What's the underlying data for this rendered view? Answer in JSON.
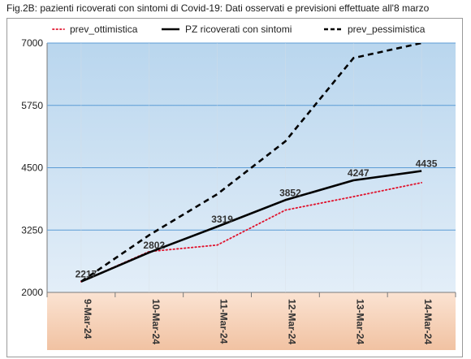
{
  "title": "Fig.2B: pazienti ricoverati con sintomi di Covid-19: Dati osservati e previsioni effettuate all'8 marzo",
  "chart_data": {
    "type": "line",
    "categories": [
      "9-Mar-24",
      "10-Mar-24",
      "11-Mar-24",
      "12-Mar-24",
      "13-Mar-24",
      "14-Mar-24"
    ],
    "ylim": [
      2000,
      7000
    ],
    "yticks": [
      "7000",
      "5750",
      "4500",
      "3250",
      "2000"
    ],
    "grid": true,
    "legend_position": "top",
    "series": [
      {
        "name": "prev_ottimistica",
        "values": [
          2217,
          2820,
          2950,
          3650,
          3920,
          4200
        ],
        "color": "#e0102a",
        "style": "dotted"
      },
      {
        "name": "PZ ricoverati con sintomi",
        "values": [
          2217,
          2802,
          3319,
          3852,
          4247,
          4435
        ],
        "color": "#000000",
        "style": "solid",
        "data_labels": [
          "2217",
          "2802",
          "3319",
          "3852",
          "4247",
          "4435"
        ]
      },
      {
        "name": "prev_pessimistica",
        "values": [
          2217,
          3150,
          3970,
          5030,
          6700,
          7000
        ],
        "color": "#000000",
        "style": "dashed"
      }
    ]
  },
  "colors": {
    "plot_top": "#b9d6ee",
    "plot_bottom": "#e3eef8",
    "axis_band_top": "#fbe3d2",
    "axis_band_bottom": "#f1c2a2",
    "gridline": "#5b9bd5"
  }
}
